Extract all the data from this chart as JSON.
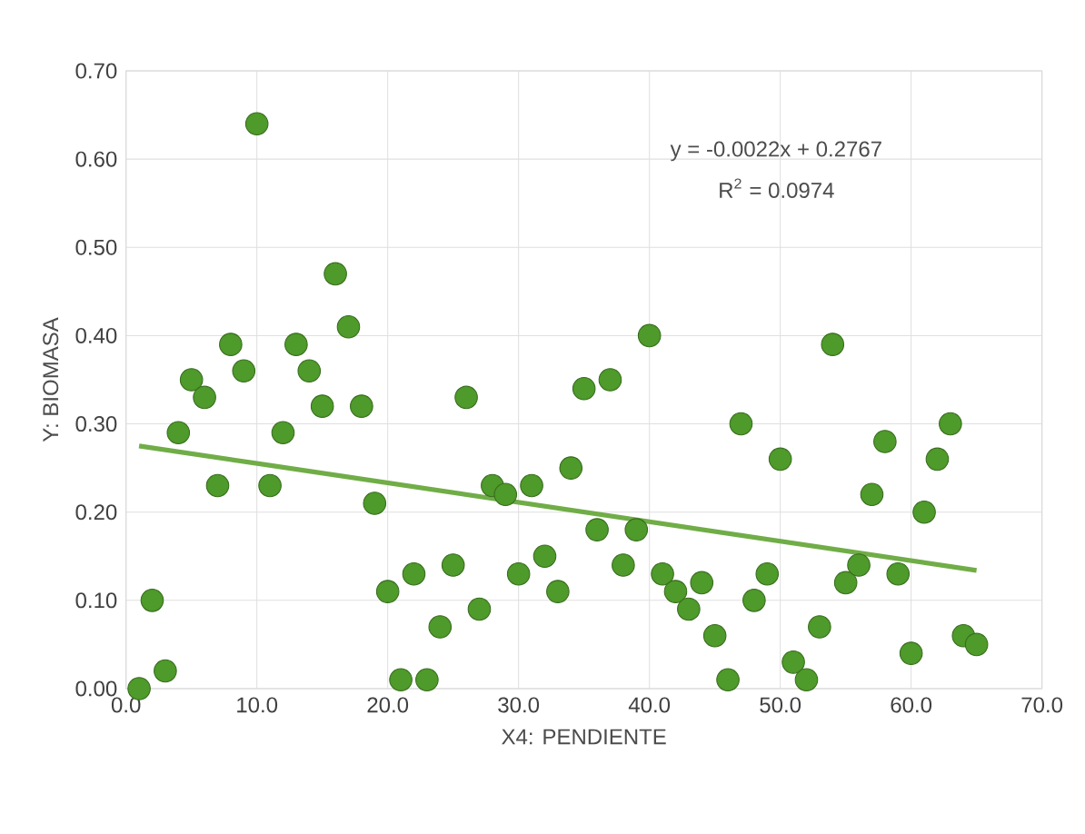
{
  "chart_data": {
    "type": "scatter",
    "xlabel": "X4: PENDIENTE",
    "ylabel": "Y: BIOMASA",
    "series": [
      {
        "color": "#4e9a2a",
        "marker": "circle",
        "x": [
          1,
          2,
          3,
          4,
          5,
          6,
          7,
          8,
          9,
          10,
          11,
          12,
          13,
          14,
          15,
          16,
          17,
          18,
          19,
          20,
          21,
          22,
          23,
          24,
          25,
          26,
          27,
          28,
          29,
          30,
          31,
          32,
          33,
          34,
          35,
          36,
          37,
          38,
          39,
          40,
          41,
          42,
          43,
          44,
          45,
          46,
          47,
          48,
          49,
          50,
          51,
          52,
          53,
          54,
          55,
          56,
          57,
          58,
          59,
          60,
          61,
          62,
          63,
          64,
          65
        ],
        "values": [
          0.0,
          0.1,
          0.02,
          0.29,
          0.35,
          0.33,
          0.23,
          0.39,
          0.36,
          0.64,
          0.23,
          0.29,
          0.39,
          0.36,
          0.32,
          0.47,
          0.41,
          0.32,
          0.21,
          0.11,
          0.01,
          0.13,
          0.01,
          0.07,
          0.14,
          0.33,
          0.09,
          0.23,
          0.22,
          0.13,
          0.23,
          0.15,
          0.11,
          0.25,
          0.34,
          0.18,
          0.35,
          0.14,
          0.18,
          0.4,
          0.13,
          0.11,
          0.09,
          0.12,
          0.06,
          0.01,
          0.3,
          0.1,
          0.13,
          0.26,
          0.03,
          0.01,
          0.07,
          0.39,
          0.12,
          0.14,
          0.22,
          0.28,
          0.13,
          0.04,
          0.2,
          0.26,
          0.3,
          0.06,
          0.05
        ]
      },
      {
        "type": "line",
        "color": "#70ad47",
        "x": [
          1,
          65
        ],
        "values": [
          0.275,
          0.134
        ]
      }
    ],
    "annotations": [
      "y = -0.0022x + 0.2767",
      "R$^{2}$ = 0.0974"
    ],
    "xlim": [
      0,
      70
    ],
    "ylim": [
      0,
      0.7
    ],
    "xticks": [
      {
        "value": 0,
        "label": "0.0"
      },
      {
        "value": 10,
        "label": "10.0"
      },
      {
        "value": 20,
        "label": "20.0"
      },
      {
        "value": 30,
        "label": "30.0"
      },
      {
        "value": 40,
        "label": "40.0"
      },
      {
        "value": 50,
        "label": "50.0"
      },
      {
        "value": 60,
        "label": "60.0"
      },
      {
        "value": 70,
        "label": "70.0"
      }
    ],
    "yticks": [
      {
        "value": 0,
        "label": "0.00"
      },
      {
        "value": 0.1,
        "label": "0.10"
      },
      {
        "value": 0.2,
        "label": "0.20"
      },
      {
        "value": 0.3,
        "label": "0.30"
      },
      {
        "value": 0.4,
        "label": "0.40"
      },
      {
        "value": 0.5,
        "label": "0.50"
      },
      {
        "value": 0.6,
        "label": "0.60"
      },
      {
        "value": 0.7,
        "label": "0.70"
      }
    ],
    "grid": true
  }
}
